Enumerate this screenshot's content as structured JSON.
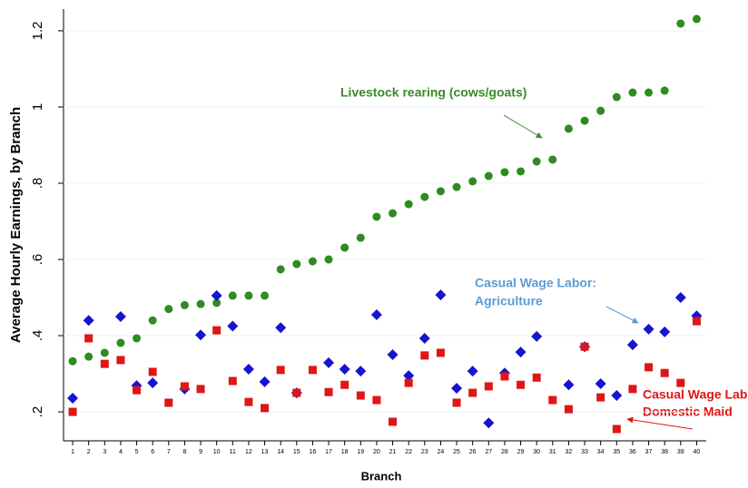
{
  "chart_data": {
    "type": "scatter",
    "ylabel": "Average Hourly Earnings, by Branch",
    "xlabel": "Branch",
    "x": [
      1,
      2,
      3,
      4,
      5,
      6,
      7,
      8,
      9,
      10,
      11,
      12,
      13,
      14,
      15,
      16,
      17,
      18,
      19,
      20,
      21,
      22,
      23,
      24,
      25,
      26,
      27,
      28,
      29,
      30,
      31,
      32,
      33,
      34,
      35,
      36,
      37,
      38,
      39,
      40
    ],
    "xlim": [
      0.43,
      40.6
    ],
    "xticks": [
      1,
      2,
      3,
      4,
      5,
      6,
      7,
      8,
      9,
      10,
      11,
      12,
      13,
      14,
      15,
      16,
      17,
      18,
      19,
      20,
      21,
      22,
      23,
      24,
      25,
      26,
      27,
      28,
      29,
      30,
      31,
      32,
      33,
      34,
      35,
      36,
      37,
      38,
      39,
      40
    ],
    "ylim": [
      0.124,
      1.257
    ],
    "yticks": [
      {
        "value": 0.2,
        "label": ".2"
      },
      {
        "value": 0.4,
        "label": ".4"
      },
      {
        "value": 0.6,
        "label": ".6"
      },
      {
        "value": 0.8,
        "label": ".8"
      },
      1,
      1.2
    ],
    "series": [
      {
        "name": "Livestock rearing (cows/goats)",
        "color": "#2f8a22",
        "marker": "circle",
        "values": [
          0.333,
          0.345,
          0.355,
          0.381,
          0.393,
          0.44,
          0.47,
          0.48,
          0.483,
          0.486,
          0.505,
          0.505,
          0.505,
          0.574,
          0.588,
          0.595,
          0.6,
          0.631,
          0.657,
          0.712,
          0.721,
          0.745,
          0.764,
          0.779,
          0.79,
          0.805,
          0.819,
          0.829,
          0.831,
          0.857,
          0.862,
          0.943,
          0.964,
          0.99,
          1.026,
          1.038,
          1.038,
          1.043,
          1.219,
          1.231
        ]
      },
      {
        "name": "Casual Wage Labor: Agriculture",
        "color": "#1515d0",
        "marker": "diamond",
        "values": [
          0.236,
          0.44,
          null,
          0.45,
          0.269,
          0.276,
          null,
          0.26,
          0.402,
          0.505,
          0.425,
          0.312,
          0.279,
          0.421,
          0.25,
          null,
          0.329,
          0.312,
          0.307,
          0.455,
          0.35,
          0.295,
          0.393,
          0.507,
          0.262,
          0.307,
          0.171,
          0.302,
          0.357,
          0.398,
          null,
          0.271,
          0.371,
          0.274,
          0.243,
          0.376,
          0.417,
          0.41,
          0.5,
          0.452
        ]
      },
      {
        "name": "Casual Wage Labor: Domestic Maid",
        "color": "#e01515",
        "marker": "square",
        "values": [
          0.2,
          0.393,
          0.326,
          0.336,
          0.257,
          0.305,
          0.224,
          0.267,
          0.26,
          0.414,
          0.281,
          0.226,
          0.21,
          0.31,
          0.25,
          0.31,
          0.252,
          0.271,
          0.243,
          0.231,
          0.174,
          0.276,
          0.348,
          0.355,
          0.224,
          0.25,
          0.267,
          0.293,
          0.271,
          0.29,
          0.231,
          0.207,
          0.371,
          0.238,
          0.155,
          0.26,
          0.317,
          0.302,
          0.276,
          0.438
        ]
      }
    ],
    "annotations": [
      {
        "lines": [
          "Livestock rearing (cows/goats)"
        ],
        "color": "#3a8a2a"
      },
      {
        "lines": [
          "Casual Wage Labor:",
          "Agriculture"
        ],
        "color": "#5b9bd5"
      },
      {
        "lines": [
          "Casual Wage Labor:",
          "Domestic Maid"
        ],
        "color": "#e01515"
      }
    ]
  }
}
